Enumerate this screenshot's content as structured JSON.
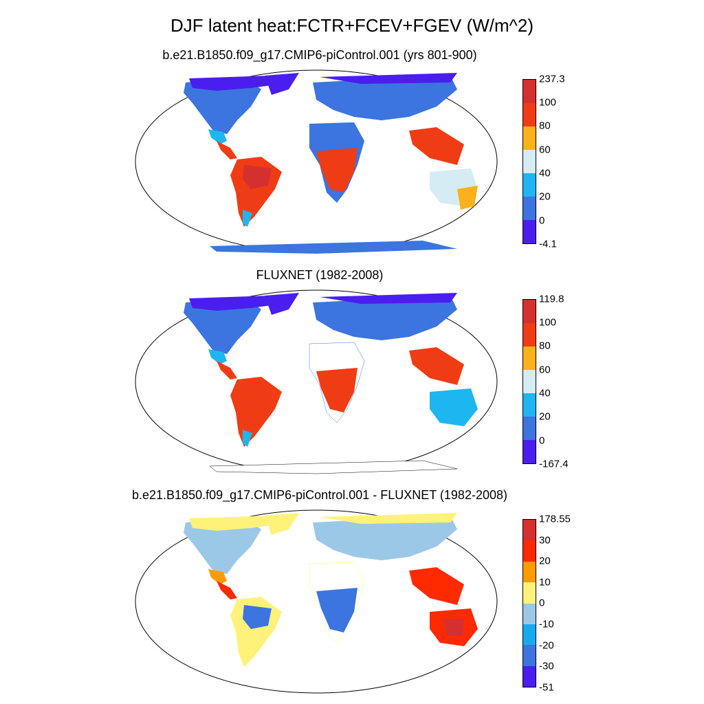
{
  "title": "DJF latent heat:FCTR+FCEV+FGEV (W/m^2)",
  "panels": [
    {
      "title": "b.e21.B1850.f09_g17.CMIP6-piControl.001 (yrs 801-900)",
      "colorbar": {
        "labels": [
          "237.3",
          "100",
          "80",
          "60",
          "40",
          "20",
          "0",
          "-4.1"
        ],
        "colors": [
          "#d43030",
          "#f03c14",
          "#fbb11a",
          "#d6ecf4",
          "#1eb6f0",
          "#3c74e0",
          "#4a1eee"
        ]
      }
    },
    {
      "title": "FLUXNET (1982-2008)",
      "colorbar": {
        "labels": [
          "119.8",
          "100",
          "80",
          "60",
          "40",
          "20",
          "0",
          "-167.4"
        ],
        "colors": [
          "#d43030",
          "#f03c14",
          "#fbb11a",
          "#d6ecf4",
          "#1eb6f0",
          "#3c74e0",
          "#4a1eee"
        ]
      }
    },
    {
      "title": "b.e21.B1850.f09_g17.CMIP6-piControl.001 - FLUXNET (1982-2008)",
      "colorbar": {
        "labels": [
          "178.55",
          "30",
          "20",
          "10",
          "0",
          "-10",
          "-20",
          "-30",
          "-51"
        ],
        "colors": [
          "#d43030",
          "#ff2a00",
          "#ff9a00",
          "#fff27a",
          "#9cc8e8",
          "#18aaf0",
          "#3c74e0",
          "#4a1eee"
        ]
      }
    }
  ]
}
